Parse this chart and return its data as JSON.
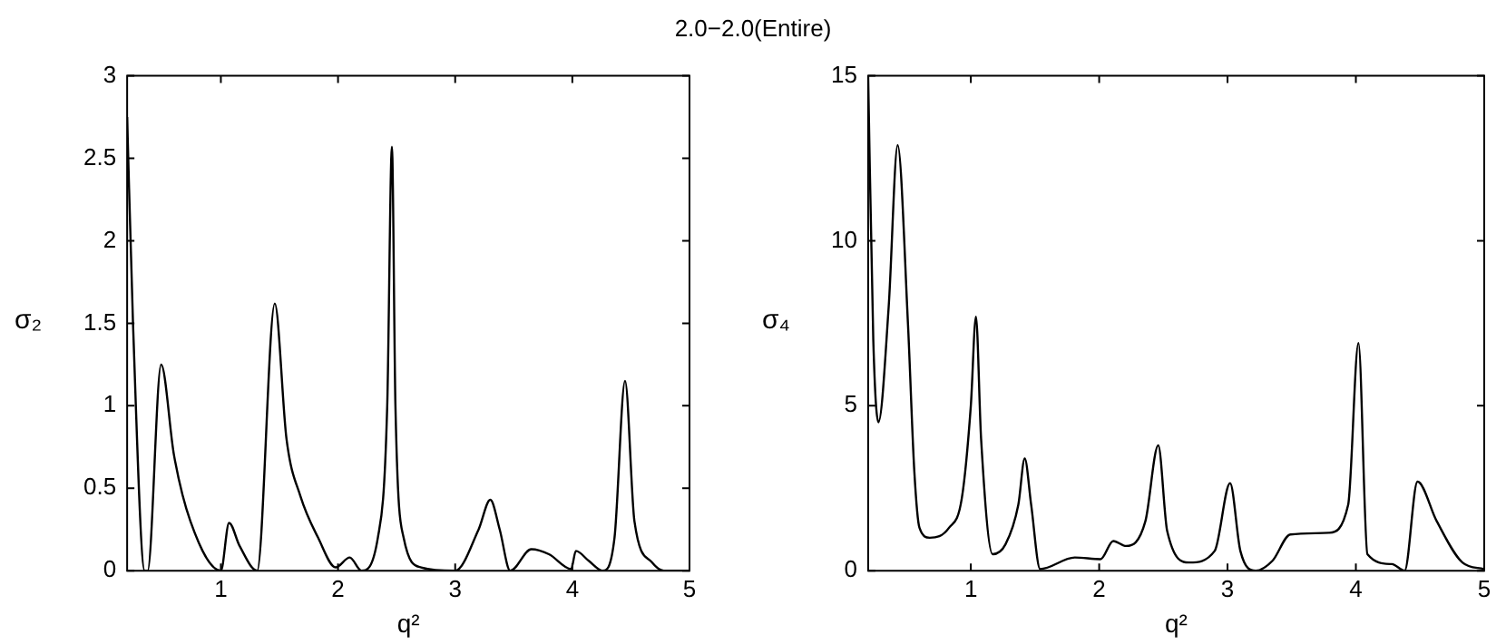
{
  "chart_data": [
    {
      "type": "line",
      "title": "2.0−2.0(Entire)",
      "xlabel": "q²",
      "ylabel": "σ₂",
      "color": "#000000",
      "marker": "none",
      "line_style": "solid",
      "xlim": [
        0.2,
        5
      ],
      "xticks": [
        1,
        2,
        3,
        4,
        5
      ],
      "ylim": [
        0,
        3
      ],
      "yticks": [
        0,
        0.5,
        1,
        1.5,
        2,
        2.5,
        3
      ],
      "x": [
        0.2,
        0.25,
        0.35,
        0.375,
        0.49,
        0.6,
        0.74,
        1.0,
        1.07,
        1.16,
        1.31,
        1.46,
        1.56,
        1.68,
        1.83,
        1.98,
        2.1,
        2.2,
        2.34,
        2.42,
        2.46,
        2.49,
        2.56,
        2.71,
        3.0,
        3.2,
        3.3,
        3.38,
        3.47,
        3.65,
        3.8,
        3.99,
        4.03,
        4.14,
        4.26,
        4.36,
        4.45,
        4.53,
        4.68,
        4.78,
        5.0
      ],
      "values": [
        2.75,
        1.5,
        0,
        0,
        1.25,
        0.7,
        0.3,
        0,
        0.29,
        0.15,
        0,
        1.62,
        0.8,
        0.45,
        0.2,
        0.02,
        0.08,
        0,
        0.2,
        1.0,
        2.57,
        1.0,
        0.2,
        0.02,
        0,
        0.25,
        0.43,
        0.25,
        0,
        0.13,
        0.1,
        0.01,
        0.12,
        0.06,
        0,
        0.2,
        1.15,
        0.3,
        0.05,
        0,
        0
      ]
    },
    {
      "type": "line",
      "xlabel": "q²",
      "ylabel": "σ₄",
      "color": "#000000",
      "marker": "none",
      "line_style": "solid",
      "xlim": [
        0.2,
        5
      ],
      "xticks": [
        1,
        2,
        3,
        4,
        5
      ],
      "ylim": [
        0,
        15
      ],
      "yticks": [
        0,
        5,
        10,
        15
      ],
      "x": [
        0.2,
        0.24,
        0.28,
        0.36,
        0.43,
        0.51,
        0.56,
        0.6,
        0.68,
        0.83,
        0.93,
        1.0,
        1.04,
        1.08,
        1.17,
        1.27,
        1.37,
        1.42,
        1.47,
        1.54,
        1.81,
        2.01,
        2.11,
        2.21,
        2.36,
        2.46,
        2.53,
        2.7,
        2.9,
        3.02,
        3.1,
        3.22,
        3.35,
        3.49,
        3.79,
        3.94,
        4.02,
        4.09,
        4.28,
        4.38,
        4.48,
        4.63,
        4.83,
        5.0
      ],
      "values": [
        15,
        7,
        4.5,
        8,
        12.9,
        7.5,
        3,
        1.3,
        1.0,
        1.3,
        2.2,
        5,
        7.7,
        4,
        0.5,
        0.8,
        2,
        3.4,
        2,
        0.05,
        0.4,
        0.35,
        0.9,
        0.75,
        1.5,
        3.8,
        1.2,
        0.25,
        0.6,
        2.65,
        0.6,
        0,
        0.3,
        1.1,
        1.15,
        2,
        6.9,
        0.5,
        0.2,
        0,
        2.7,
        1.5,
        0.25,
        0.05
      ]
    }
  ]
}
